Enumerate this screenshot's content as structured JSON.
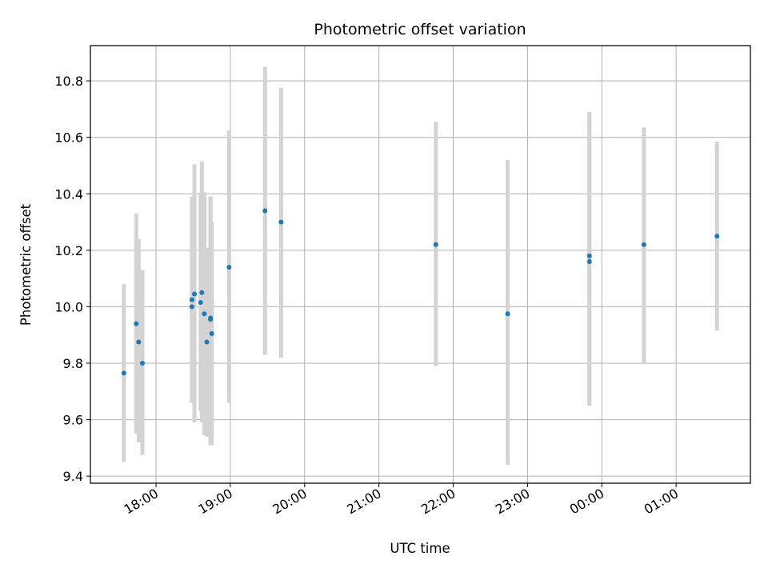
{
  "chart_data": {
    "type": "scatter",
    "title": "Photometric offset variation",
    "xlabel": "UTC time",
    "ylabel": "Photometric offset",
    "grid": true,
    "legend": "none",
    "x_axis_kind": "time",
    "xlim": [
      "17:07",
      "02:00"
    ],
    "ylim": [
      9.375,
      10.925
    ],
    "xticks": [
      "18:00",
      "19:00",
      "20:00",
      "21:00",
      "22:00",
      "23:00",
      "00:00",
      "01:00"
    ],
    "yticks": [
      "9.4",
      "9.6",
      "9.8",
      "10.0",
      "10.2",
      "10.4",
      "10.6",
      "10.8"
    ],
    "ytick_values": [
      9.4,
      9.6,
      9.8,
      10.0,
      10.2,
      10.4,
      10.6,
      10.8
    ],
    "colors": {
      "points": "#1f77b4",
      "errorbars": "#d3d3d3",
      "grid": "#b0b0b0"
    },
    "series": [
      {
        "points": [
          {
            "x": "17:34",
            "y": 9.765,
            "err_low": 9.45,
            "err_high": 10.08
          },
          {
            "x": "17:44",
            "y": 9.94,
            "err_low": 9.55,
            "err_high": 10.33
          },
          {
            "x": "17:46",
            "y": 9.875,
            "err_low": 9.52,
            "err_high": 10.24
          },
          {
            "x": "17:49",
            "y": 9.8,
            "err_low": 9.475,
            "err_high": 10.13
          },
          {
            "x": "18:29",
            "y": 10.0,
            "err_low": 9.66,
            "err_high": 10.39
          },
          {
            "x": "18:29",
            "y": 10.025,
            "err_low": 9.66,
            "err_high": 10.39
          },
          {
            "x": "18:31",
            "y": 10.045,
            "err_low": 9.59,
            "err_high": 10.505
          },
          {
            "x": "18:36",
            "y": 10.015,
            "err_low": 9.63,
            "err_high": 10.4
          },
          {
            "x": "18:37",
            "y": 10.05,
            "err_low": 9.59,
            "err_high": 10.515
          },
          {
            "x": "18:39",
            "y": 9.975,
            "err_low": 9.545,
            "err_high": 10.405
          },
          {
            "x": "18:41",
            "y": 9.875,
            "err_low": 9.54,
            "err_high": 10.21
          },
          {
            "x": "18:44",
            "y": 9.96,
            "err_low": 9.51,
            "err_high": 10.39
          },
          {
            "x": "18:44",
            "y": 9.955,
            "err_low": 9.51,
            "err_high": 10.39
          },
          {
            "x": "18:45",
            "y": 9.905,
            "err_low": 9.51,
            "err_high": 10.3
          },
          {
            "x": "18:59",
            "y": 10.14,
            "err_low": 9.66,
            "err_high": 10.625
          },
          {
            "x": "19:28",
            "y": 10.34,
            "err_low": 9.83,
            "err_high": 10.85
          },
          {
            "x": "19:41",
            "y": 10.3,
            "err_low": 9.82,
            "err_high": 10.775
          },
          {
            "x": "21:46",
            "y": 10.22,
            "err_low": 9.79,
            "err_high": 10.655
          },
          {
            "x": "22:44",
            "y": 9.975,
            "err_low": 9.44,
            "err_high": 10.52
          },
          {
            "x": "23:50",
            "y": 10.18,
            "err_low": 9.65,
            "err_high": 10.69
          },
          {
            "x": "23:50",
            "y": 10.16,
            "err_low": 9.65,
            "err_high": 10.675
          },
          {
            "x": "00:34",
            "y": 10.22,
            "err_low": 9.8,
            "err_high": 10.635
          },
          {
            "x": "01:33",
            "y": 10.25,
            "err_low": 9.915,
            "err_high": 10.585
          }
        ]
      }
    ]
  }
}
